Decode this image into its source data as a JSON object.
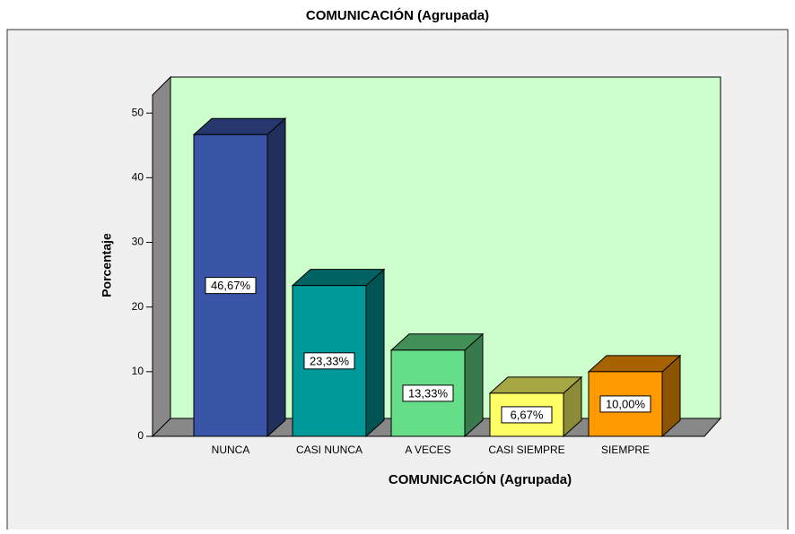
{
  "chart_data": {
    "type": "bar3d",
    "title": "COMUNICACIÓN (Agrupada)",
    "x_label": "COMUNICACIÓN (Agrupada)",
    "y_label": "Porcentaje",
    "categories": [
      "NUNCA",
      "CASI NUNCA",
      "A VECES",
      "CASI SIEMPRE",
      "SIEMPRE"
    ],
    "values": [
      46.67,
      23.33,
      13.33,
      6.67,
      10.0
    ],
    "value_labels": [
      "46,67%",
      "23,33%",
      "13,33%",
      "6,67%",
      "10,00%"
    ],
    "colors": [
      "#3a55a8",
      "#009999",
      "#66dd88",
      "#ffff66",
      "#ff9900"
    ],
    "ylim": [
      0,
      52.8
    ],
    "yticks": [
      0,
      10,
      20,
      30,
      40,
      50
    ]
  }
}
